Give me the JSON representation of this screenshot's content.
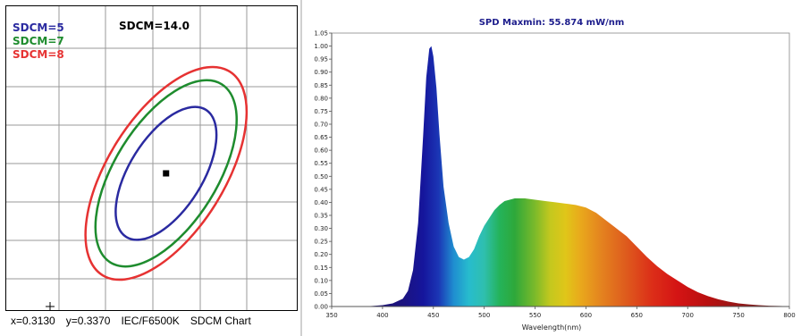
{
  "sdcm_chart": {
    "legend": [
      {
        "label": "SDCM=5",
        "color": "#2a2aa0"
      },
      {
        "label": "SDCM=7",
        "color": "#1e8c2e"
      },
      {
        "label": "SDCM=8",
        "color": "#e63232"
      }
    ],
    "sdcm_value_label": "SDCM=14.0",
    "footer": {
      "x_text": "x=0.3130",
      "y_text": "y=0.3370",
      "standard": "IEC/F6500K",
      "chart_name": "SDCM Chart"
    }
  },
  "chart_data": [
    {
      "type": "scatter",
      "title": "",
      "ellipses": [
        {
          "name": "SDCM=5",
          "color": "#2a2aa0",
          "cx": 0.313,
          "cy": 0.337,
          "rx": 0.0155,
          "ry": 0.0072,
          "angle_deg": 58
        },
        {
          "name": "SDCM=7",
          "color": "#1e8c2e",
          "cx": 0.313,
          "cy": 0.337,
          "rx": 0.0217,
          "ry": 0.0101,
          "angle_deg": 58
        },
        {
          "name": "SDCM=8",
          "color": "#e63232",
          "cx": 0.313,
          "cy": 0.337,
          "rx": 0.0248,
          "ry": 0.0115,
          "angle_deg": 58
        }
      ],
      "points": [
        {
          "x": 0.313,
          "y": 0.337
        }
      ],
      "xlim": [
        0.28,
        0.34
      ],
      "ylim": [
        0.31,
        0.37
      ],
      "grid": true
    },
    {
      "type": "area",
      "title": "SPD Maxmin: 55.874 mW/nm",
      "xlabel": "Wavelength(nm)",
      "ylabel": "",
      "xlim": [
        350,
        800
      ],
      "ylim": [
        0,
        1.05
      ],
      "xticks": [
        350,
        400,
        450,
        500,
        550,
        600,
        650,
        700,
        750,
        800
      ],
      "yticks": [
        "0.00",
        "0.05",
        "0.10",
        "0.15",
        "0.20",
        "0.25",
        "0.30",
        "0.35",
        "0.40",
        "0.45",
        "0.50",
        "0.55",
        "0.60",
        "0.65",
        "0.70",
        "0.75",
        "0.80",
        "0.85",
        "0.90",
        "0.95",
        "1.00",
        "1.05"
      ],
      "series": [
        {
          "x": [
            380,
            390,
            400,
            410,
            420,
            425,
            430,
            435,
            440,
            443,
            446,
            448,
            450,
            453,
            456,
            460,
            465,
            470,
            475,
            480,
            485,
            490,
            495,
            500,
            505,
            510,
            515,
            520,
            525,
            530,
            540,
            550,
            560,
            570,
            580,
            590,
            600,
            610,
            620,
            630,
            640,
            650,
            660,
            670,
            680,
            690,
            700,
            710,
            720,
            730,
            740,
            750,
            760,
            770,
            780,
            790,
            800
          ],
          "values": [
            0.0,
            0.002,
            0.005,
            0.012,
            0.03,
            0.06,
            0.14,
            0.32,
            0.66,
            0.88,
            0.99,
            1.0,
            0.96,
            0.84,
            0.66,
            0.46,
            0.32,
            0.23,
            0.19,
            0.18,
            0.19,
            0.22,
            0.27,
            0.31,
            0.34,
            0.37,
            0.39,
            0.405,
            0.41,
            0.415,
            0.415,
            0.41,
            0.405,
            0.4,
            0.395,
            0.39,
            0.38,
            0.36,
            0.33,
            0.3,
            0.27,
            0.23,
            0.19,
            0.155,
            0.125,
            0.1,
            0.075,
            0.055,
            0.04,
            0.028,
            0.019,
            0.012,
            0.008,
            0.005,
            0.003,
            0.002,
            0.001
          ]
        }
      ]
    }
  ]
}
